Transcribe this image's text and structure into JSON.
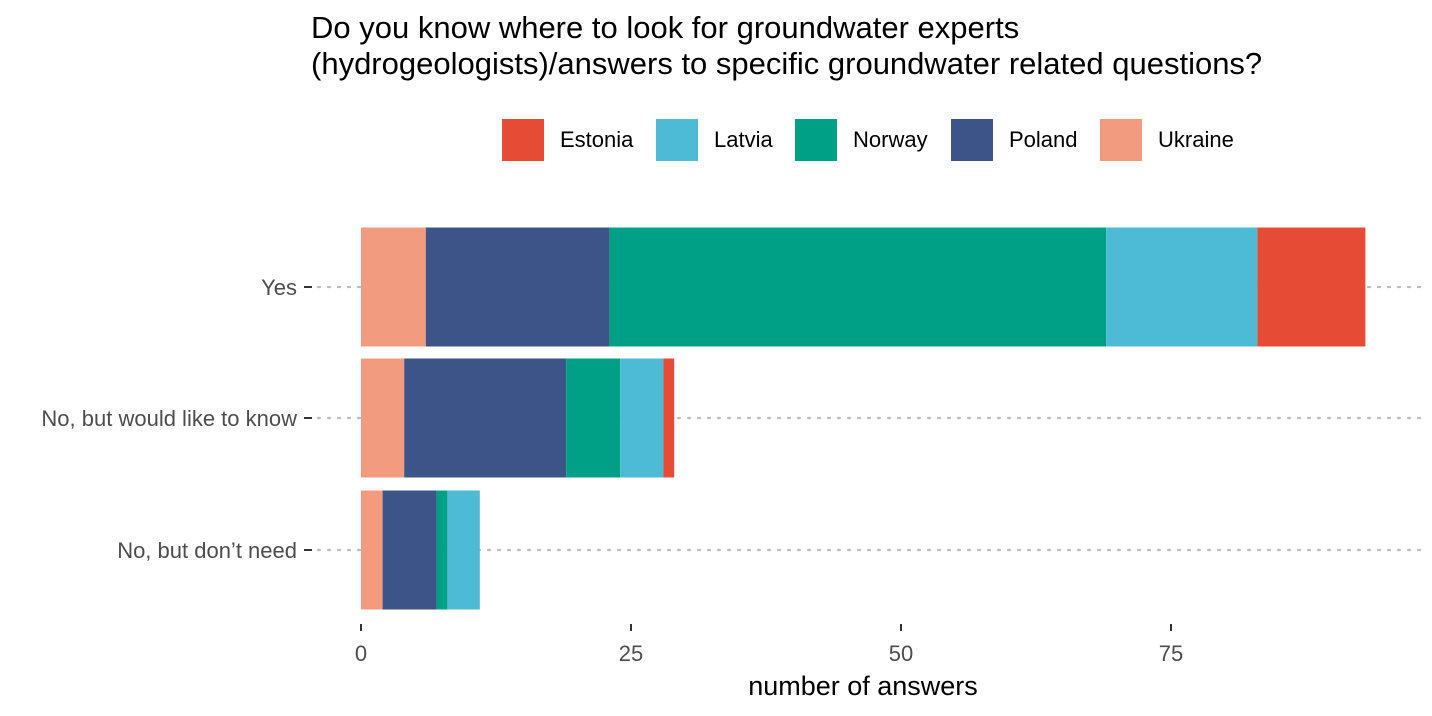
{
  "chart_data": {
    "type": "bar",
    "orientation": "horizontal",
    "stacked": true,
    "title_lines": [
      "Do you know where to look for groundwater experts",
      "(hydrogeologists)/answers to specific groundwater related questions?"
    ],
    "xlabel": "number of answers",
    "ylabel": "",
    "categories": [
      "Yes",
      "No, but would like to know",
      "No, but don’t need"
    ],
    "xlim": [
      0,
      98
    ],
    "x_ticks": [
      0,
      25,
      50,
      75
    ],
    "x_tick_labels": [
      "0",
      "25",
      "50",
      "75"
    ],
    "stack_order": [
      "Ukraine",
      "Poland",
      "Norway",
      "Latvia",
      "Estonia"
    ],
    "series": [
      {
        "name": "Estonia",
        "color": "#E64B35",
        "values": [
          10,
          1,
          0
        ]
      },
      {
        "name": "Latvia",
        "color": "#4DBBD5",
        "values": [
          14,
          4,
          3
        ]
      },
      {
        "name": "Norway",
        "color": "#00A087",
        "values": [
          46,
          5,
          1
        ]
      },
      {
        "name": "Poland",
        "color": "#3C5488",
        "values": [
          17,
          15,
          5
        ]
      },
      {
        "name": "Ukraine",
        "color": "#F39B7F",
        "values": [
          6,
          4,
          2
        ]
      }
    ],
    "legend_position": "top",
    "grid": "horizontal dotted at category rows"
  }
}
